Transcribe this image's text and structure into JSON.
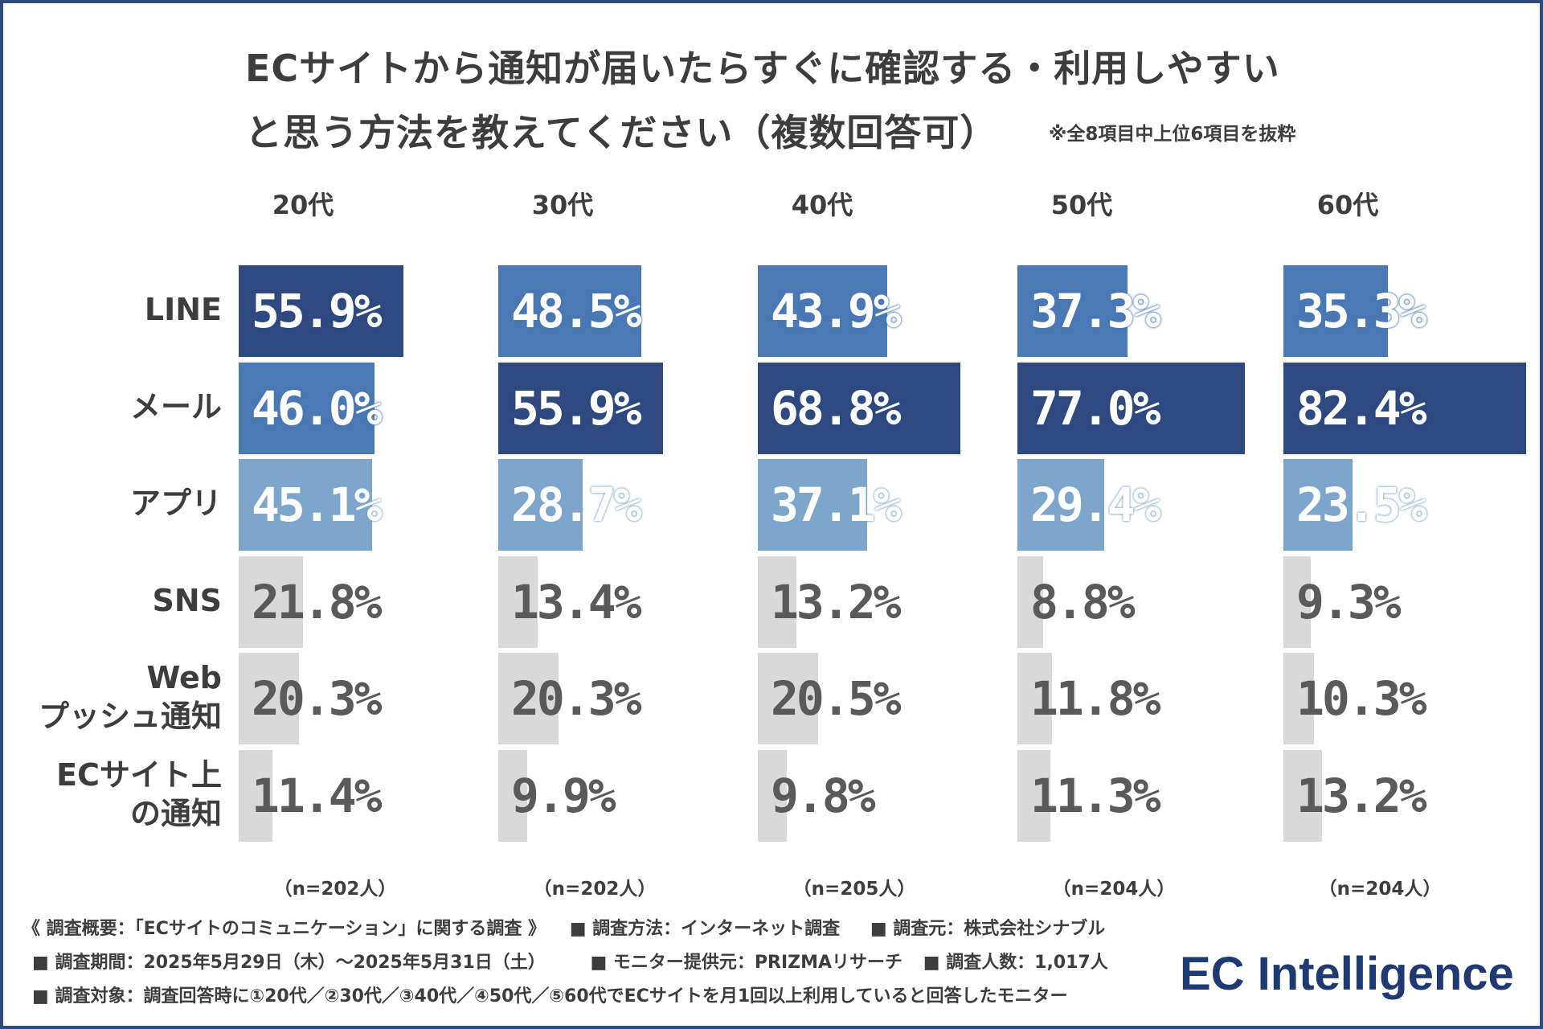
{
  "title": {
    "line1": "ECサイトから通知が届いたらすぐに確認する・利用しやすい",
    "line2": "と思う方法を教えてください（複数回答可）",
    "note": "※全8項目中上位6項目を抜粋"
  },
  "colors": {
    "top1": "#2e4a80",
    "top2": "#4a79b5",
    "top3": "#7ea6cc",
    "rest": "#d9d9d9"
  },
  "chart_data": {
    "type": "bar",
    "orientation": "horizontal",
    "categories": [
      "LINE",
      "メール",
      "アプリ",
      "SNS",
      "Web\nプッシュ通知",
      "ECサイト上\nの通知"
    ],
    "category_labels": [
      [
        "LINE"
      ],
      [
        "メール"
      ],
      [
        "アプリ"
      ],
      [
        "SNS"
      ],
      [
        "Web",
        "プッシュ通知"
      ],
      [
        "ECサイト上",
        "の通知"
      ]
    ],
    "series": [
      {
        "name": "20代",
        "n": "（n=202人）",
        "values": [
          55.9,
          46.0,
          45.1,
          21.8,
          20.3,
          11.4
        ],
        "labels": [
          "55.9%",
          "46.0%",
          "45.1%",
          "21.8%",
          "20.3%",
          "11.4%"
        ]
      },
      {
        "name": "30代",
        "n": "（n=202人）",
        "values": [
          48.5,
          55.9,
          28.7,
          13.4,
          20.3,
          9.9
        ],
        "labels": [
          "48.5%",
          "55.9%",
          "28.7%",
          "13.4%",
          "20.3%",
          "9.9%"
        ]
      },
      {
        "name": "40代",
        "n": "（n=205人）",
        "values": [
          43.9,
          68.8,
          37.1,
          13.2,
          20.5,
          9.8
        ],
        "labels": [
          "43.9%",
          "68.8%",
          "37.1%",
          "13.2%",
          "20.5%",
          "9.8%"
        ]
      },
      {
        "name": "50代",
        "n": "（n=204人）",
        "values": [
          37.3,
          77.0,
          29.4,
          8.8,
          11.8,
          11.3
        ],
        "labels": [
          "37.3%",
          "77.0%",
          "29.4%",
          "8.8%",
          "11.8%",
          "11.3%"
        ]
      },
      {
        "name": "60代",
        "n": "（n=204人）",
        "values": [
          35.3,
          82.4,
          23.5,
          9.3,
          10.3,
          13.2
        ],
        "labels": [
          "35.3%",
          "82.4%",
          "23.5%",
          "9.3%",
          "10.3%",
          "13.2%"
        ]
      }
    ],
    "unit": "%",
    "highlight": "top 3 categories per age group colored in blue shades; rank 1 darkest"
  },
  "footer": {
    "line1a": "《 調査概要：「ECサイトのコミュニケーション」に関する調査 》",
    "line1b": "■ 調査方法：インターネット調査",
    "line1c": "■ 調査元：株式会社シナブル",
    "line2a": "■ 調査期間：2025年5月29日（木）～2025年5月31日（土）",
    "line2b": "■ モニター提供元：PRIZMAリサーチ",
    "line2c": "■ 調査人数：1,017人",
    "line3": "■ 調査対象：調査回答時に①20代／②30代／③40代／④50代／⑤60代でECサイトを月1回以上利用していると回答したモニター"
  },
  "logo": "EC Intelligence"
}
